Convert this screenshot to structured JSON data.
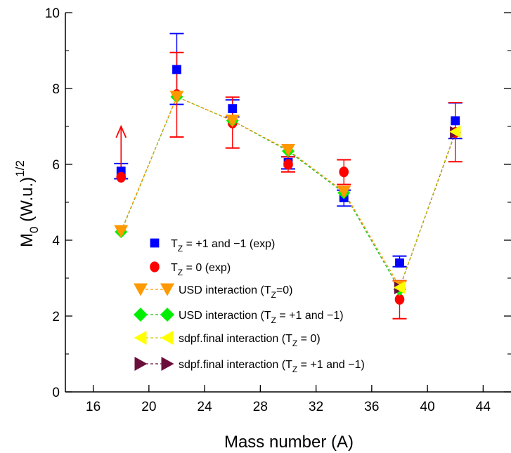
{
  "chart_data": {
    "type": "scatter",
    "xlabel": "Mass number (A)",
    "ylabel": "M0 (W.u.)1/2",
    "ylabel_parts": {
      "main": "M",
      "sub": "0",
      "mid": " (W.u.)",
      "sup": "1/2"
    },
    "xlim": [
      14,
      46
    ],
    "ylim": [
      0,
      10
    ],
    "xticks": [
      16,
      20,
      24,
      28,
      32,
      36,
      40,
      44
    ],
    "yticks": [
      0,
      2,
      4,
      6,
      8,
      10
    ],
    "grid": false,
    "legend_placement": "center-left",
    "series": [
      {
        "name": "TZ = +1 and −1 (exp)",
        "legend_parts": [
          "T",
          "Z",
          " = +1 and −1 (exp)"
        ],
        "marker": "square",
        "color": "#0000ff",
        "line": false,
        "x": [
          18,
          22,
          26,
          30,
          34,
          38,
          42
        ],
        "y": [
          5.82,
          8.5,
          7.47,
          6.05,
          5.12,
          3.4,
          7.15
        ],
        "err": [
          [
            5.62,
            6.02
          ],
          [
            7.58,
            9.45
          ],
          [
            7.25,
            7.7
          ],
          [
            5.88,
            6.2
          ],
          [
            4.9,
            5.32
          ],
          [
            3.3,
            3.58
          ],
          [
            6.68,
            7.62
          ]
        ]
      },
      {
        "name": "TZ = 0 (exp)",
        "legend_parts": [
          "T",
          "Z",
          " = 0 (exp)"
        ],
        "marker": "circle",
        "color": "#ff0000",
        "line": false,
        "x": [
          18,
          22,
          26,
          30,
          34,
          38,
          42
        ],
        "y": [
          5.66,
          7.84,
          7.09,
          6.0,
          5.8,
          2.44,
          6.84
        ],
        "err": [
          null,
          [
            6.72,
            8.95
          ],
          [
            6.43,
            7.77
          ],
          [
            5.8,
            6.2
          ],
          [
            5.47,
            6.12
          ],
          [
            1.93,
            2.93
          ],
          [
            6.07,
            7.63
          ]
        ],
        "lower_limit_x": 18,
        "lower_limit_to": 7.0
      },
      {
        "name": "USD interaction (TZ=0)",
        "legend_parts": [
          "USD interaction (T",
          "Z",
          "=0)"
        ],
        "marker": "triangle-down",
        "color": "#ff9900",
        "line": true,
        "x": [
          18,
          22,
          26,
          30,
          34,
          38
        ],
        "y": [
          4.24,
          7.78,
          7.15,
          6.38,
          5.28,
          2.78
        ]
      },
      {
        "name": "USD interaction (TZ = +1 and −1)",
        "legend_parts": [
          "USD interaction (T",
          "Z",
          " = +1 and −1)"
        ],
        "marker": "diamond",
        "color": "#00ee00",
        "line": true,
        "x": [
          18,
          22,
          26,
          30,
          34,
          38
        ],
        "y": [
          4.22,
          7.78,
          7.15,
          6.35,
          5.25,
          2.7
        ]
      },
      {
        "name": "sdpf.final interaction (TZ = 0)",
        "legend_parts": [
          "sdpf.final interaction (T",
          "Z",
          " = 0)"
        ],
        "marker": "triangle-left",
        "color": "#ffff00",
        "line": true,
        "x": [
          38,
          42
        ],
        "y": [
          2.75,
          6.86
        ]
      },
      {
        "name": "sdpf.final interaction (TZ = +1 and −1)",
        "legend_parts": [
          "sdpf.final interaction (T",
          "Z",
          " = +1 and −1)"
        ],
        "marker": "triangle-right",
        "color": "#6b0f3a",
        "line": true,
        "x": [
          38,
          42
        ],
        "y": [
          2.74,
          6.84
        ]
      }
    ]
  }
}
